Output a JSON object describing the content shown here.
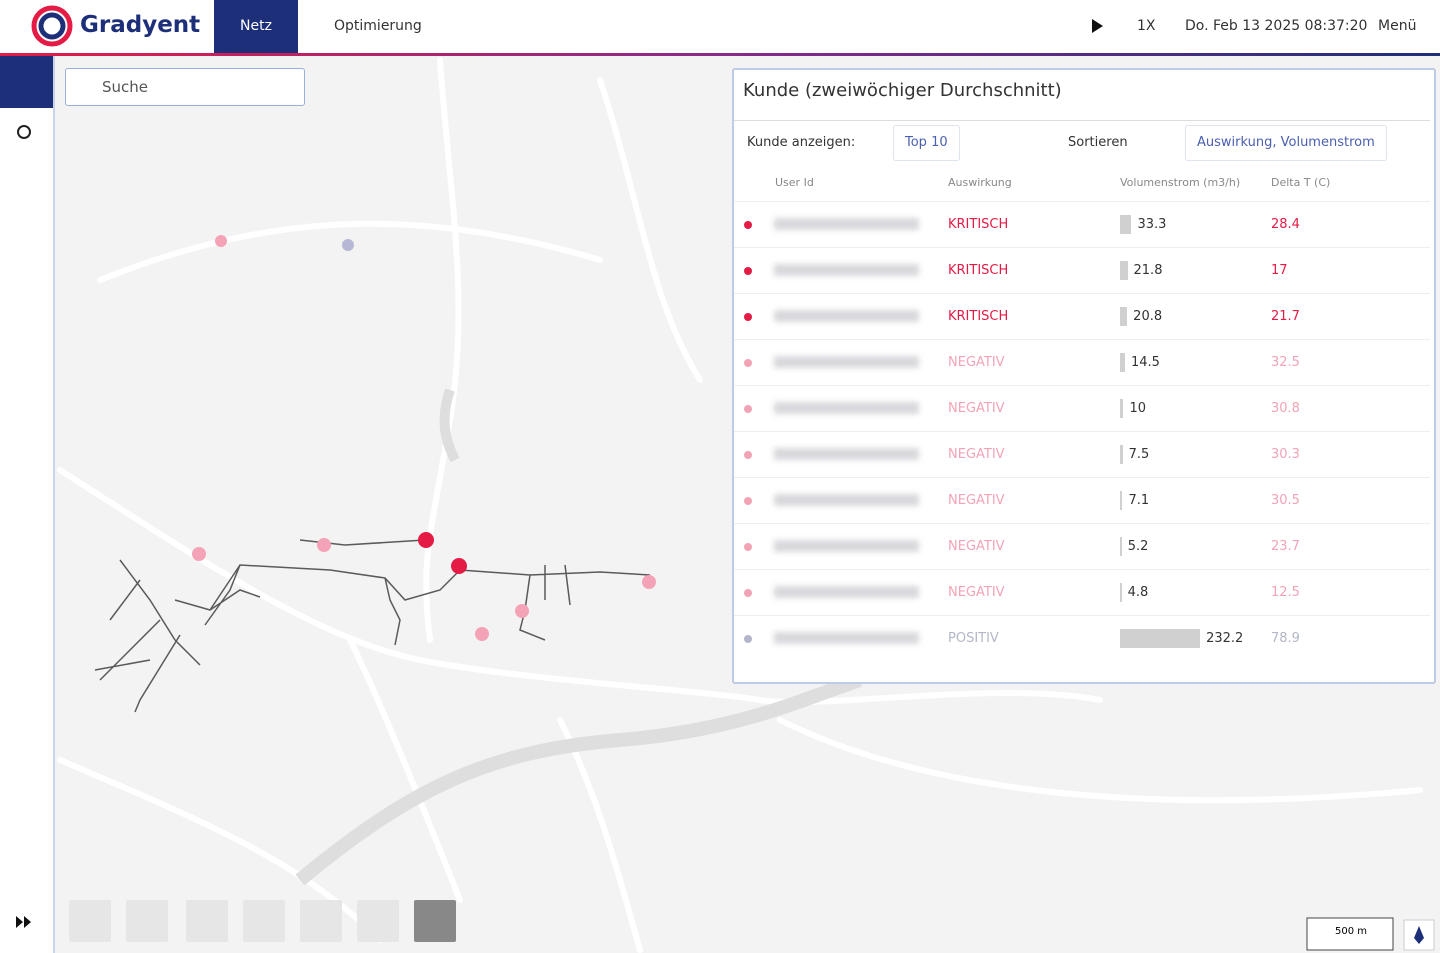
{
  "header": {
    "brand": "Gradyent",
    "tabs": [
      "Netz",
      "Optimierung"
    ],
    "speed": "1X",
    "datetime": "Do. Feb 13 2025 08:37:20",
    "menu": "Menü"
  },
  "search": {
    "placeholder": "Suche"
  },
  "panel": {
    "title": "Kunde (zweiwöchiger Durchschnitt)",
    "show_label": "Kunde anzeigen:",
    "show_value": "Top 10",
    "sort_label": "Sortieren",
    "sort_value": "Auswirkung, Volumenstrom",
    "columns": [
      "User Id",
      "Auswirkung",
      "Volumenstrom (m3/h)",
      "Delta T (C)"
    ],
    "rows": [
      {
        "impact": "KRITISCH",
        "flow": 33.3,
        "delta": 28.4,
        "color": "#e31b45"
      },
      {
        "impact": "KRITISCH",
        "flow": 21.8,
        "delta": 17,
        "color": "#e31b45"
      },
      {
        "impact": "KRITISCH",
        "flow": 20.8,
        "delta": 21.7,
        "color": "#e31b45"
      },
      {
        "impact": "NEGATIV",
        "flow": 14.5,
        "delta": 32.5,
        "color": "#f3a3b6"
      },
      {
        "impact": "NEGATIV",
        "flow": 10,
        "delta": 30.8,
        "color": "#f3a3b6"
      },
      {
        "impact": "NEGATIV",
        "flow": 7.5,
        "delta": 30.3,
        "color": "#f3a3b6"
      },
      {
        "impact": "NEGATIV",
        "flow": 7.1,
        "delta": 30.5,
        "color": "#f3a3b6"
      },
      {
        "impact": "NEGATIV",
        "flow": 5.2,
        "delta": 23.7,
        "color": "#f3a3b6"
      },
      {
        "impact": "NEGATIV",
        "flow": 4.8,
        "delta": 12.5,
        "color": "#f3a3b6"
      },
      {
        "impact": "POSITIV",
        "flow": 232.2,
        "delta": 78.9,
        "color": "#b3b6c8"
      }
    ]
  },
  "map": {
    "scale": "500 m"
  }
}
